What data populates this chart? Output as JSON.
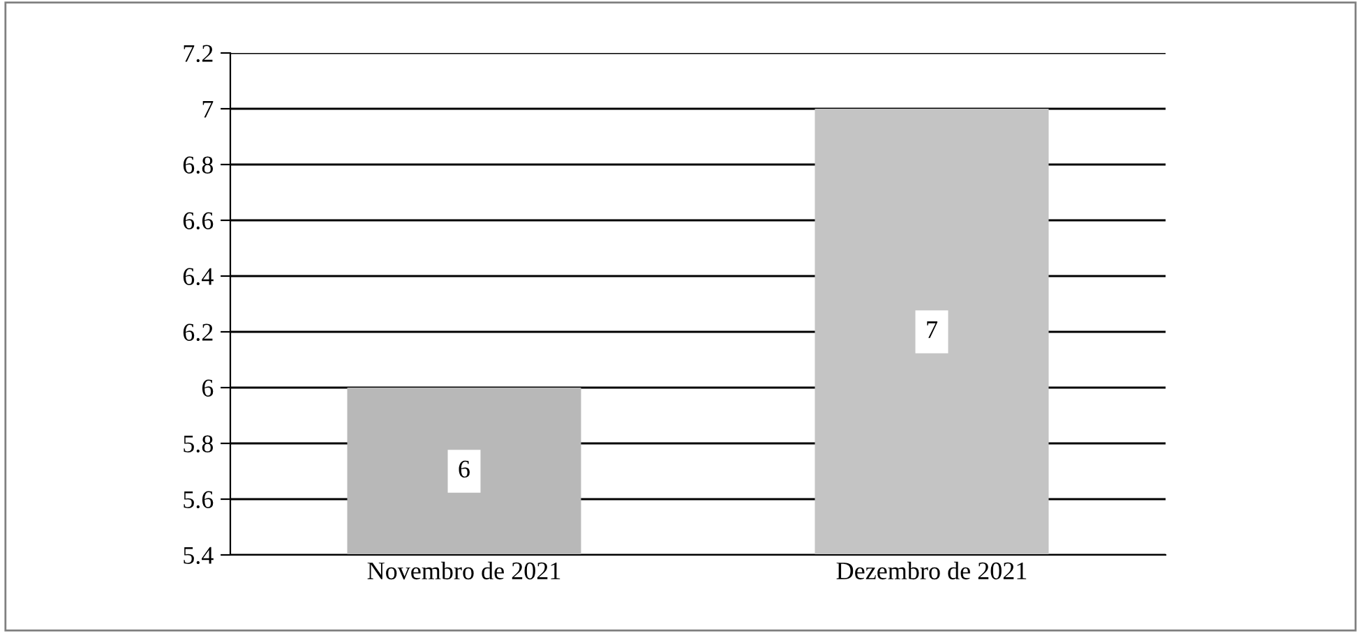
{
  "chart_data": {
    "type": "bar",
    "categories": [
      "Novembro de 2021",
      "Dezembro de 2021"
    ],
    "values": [
      6,
      7
    ],
    "colors": [
      "#b8b8b8",
      "#c4c4c4"
    ],
    "ylim": [
      5.4,
      7.2
    ],
    "yticks": [
      5.4,
      5.6,
      5.8,
      6,
      6.2,
      6.4,
      6.6,
      6.8,
      7,
      7.2
    ],
    "grid": "y",
    "data_labels": true,
    "legend": false
  }
}
